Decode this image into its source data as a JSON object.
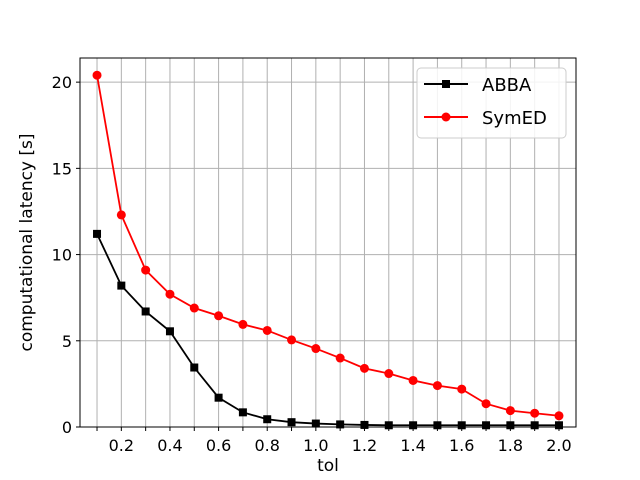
{
  "chart_data": {
    "type": "line",
    "title": "",
    "xlabel": "tol",
    "ylabel": "computational latency [s]",
    "x": [
      0.1,
      0.2,
      0.3,
      0.4,
      0.5,
      0.6,
      0.7,
      0.8,
      0.9,
      1.0,
      1.1,
      1.2,
      1.3,
      1.4,
      1.5,
      1.6,
      1.7,
      1.8,
      1.9,
      2.0
    ],
    "x_tick_labels": [
      "0.2",
      "0.4",
      "0.6",
      "0.8",
      "1.0",
      "1.2",
      "1.4",
      "1.6",
      "1.8",
      "2.0"
    ],
    "y_tick_labels": [
      "0",
      "5",
      "10",
      "15",
      "20"
    ],
    "xlim": [
      0.03,
      2.07
    ],
    "ylim": [
      0,
      21.4
    ],
    "grid": true,
    "legend_position": "top-right",
    "series": [
      {
        "name": "ABBA",
        "color": "#000000",
        "marker": "square",
        "values": [
          11.2,
          8.2,
          6.7,
          5.55,
          3.45,
          1.7,
          0.85,
          0.45,
          0.28,
          0.2,
          0.15,
          0.12,
          0.1,
          0.1,
          0.1,
          0.1,
          0.1,
          0.1,
          0.1,
          0.1
        ]
      },
      {
        "name": "SymED",
        "color": "#ff0000",
        "marker": "circle",
        "values": [
          20.4,
          12.3,
          9.1,
          7.7,
          6.9,
          6.45,
          5.95,
          5.6,
          5.05,
          4.55,
          4.0,
          3.4,
          3.1,
          2.7,
          2.4,
          2.2,
          1.35,
          0.95,
          0.8,
          0.65
        ]
      }
    ]
  }
}
